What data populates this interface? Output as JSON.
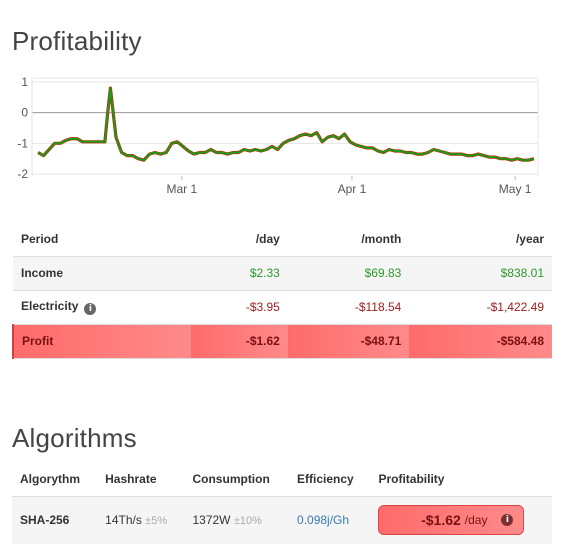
{
  "profitability": {
    "title": "Profitability",
    "table": {
      "headers": [
        "Period",
        "/day",
        "/month",
        "/year"
      ],
      "rows": [
        {
          "label": "Income",
          "day": "$2.33",
          "month": "$69.83",
          "year": "$838.01"
        },
        {
          "label": "Electricity",
          "day": "-$3.95",
          "month": "-$118.54",
          "year": "-$1,422.49"
        },
        {
          "label": "Profit",
          "day": "-$1.62",
          "month": "-$48.71",
          "year": "-$584.48"
        }
      ]
    }
  },
  "chart_data": {
    "type": "line",
    "ylim": [
      -2,
      1
    ],
    "yticks": [
      "1",
      "0",
      "-1",
      "-2"
    ],
    "xticks": [
      "Mar 1",
      "Apr 1",
      "May 1"
    ],
    "series": [
      {
        "color": "#1a9a1a",
        "outline_color": "#cc2200",
        "x": [
          0,
          2,
          4,
          6,
          8,
          10,
          12,
          14,
          16,
          18,
          20,
          22,
          24,
          25,
          26,
          27,
          28,
          30,
          32,
          34,
          36,
          38,
          40,
          42,
          44,
          46,
          48,
          50,
          52,
          54,
          56,
          58,
          60,
          62,
          64,
          66,
          68,
          70,
          72,
          74,
          76,
          78,
          80,
          82,
          84,
          86,
          88,
          90,
          92,
          94,
          96,
          98,
          100,
          102,
          104,
          106,
          108,
          110,
          112,
          114,
          116,
          118,
          120,
          122,
          124,
          126,
          128,
          130,
          132,
          134,
          136,
          138,
          140,
          142,
          144,
          146,
          148,
          150,
          152,
          154,
          156,
          158,
          160,
          162,
          164,
          166,
          168,
          170,
          172,
          174,
          176,
          178
        ],
        "y": [
          -1.3,
          -1.4,
          -1.2,
          -1.0,
          -1.0,
          -0.9,
          -0.85,
          -0.85,
          -0.95,
          -0.95,
          -0.95,
          -0.95,
          -0.95,
          0.0,
          0.8,
          0.0,
          -0.8,
          -1.3,
          -1.4,
          -1.4,
          -1.5,
          -1.55,
          -1.35,
          -1.3,
          -1.35,
          -1.3,
          -1.0,
          -0.95,
          -1.1,
          -1.25,
          -1.35,
          -1.3,
          -1.3,
          -1.2,
          -1.3,
          -1.3,
          -1.35,
          -1.3,
          -1.3,
          -1.2,
          -1.25,
          -1.2,
          -1.25,
          -1.2,
          -1.1,
          -1.2,
          -1.0,
          -0.9,
          -0.85,
          -0.75,
          -0.7,
          -0.75,
          -0.65,
          -0.95,
          -0.8,
          -0.75,
          -0.85,
          -0.7,
          -0.95,
          -1.05,
          -1.1,
          -1.15,
          -1.15,
          -1.25,
          -1.3,
          -1.2,
          -1.25,
          -1.25,
          -1.3,
          -1.3,
          -1.35,
          -1.35,
          -1.3,
          -1.2,
          -1.25,
          -1.3,
          -1.35,
          -1.35,
          -1.35,
          -1.4,
          -1.4,
          -1.35,
          -1.4,
          -1.45,
          -1.45,
          -1.5,
          -1.5,
          -1.55,
          -1.5,
          -1.55,
          -1.55,
          -1.5
        ]
      }
    ]
  },
  "algorithms": {
    "title": "Algorithms",
    "headers": [
      "Algorythm",
      "Hashrate",
      "Consumption",
      "Efficiency",
      "Profitability"
    ],
    "row": {
      "name": "SHA-256",
      "hashrate": "14Th/s",
      "hashrate_tol": "±5%",
      "consumption": "1372W",
      "consumption_tol": "±10%",
      "efficiency": "0.098j/Gh",
      "profit_value": "-$1.62",
      "profit_unit": "/day"
    }
  },
  "colors": {
    "positive": "#2a9a2a",
    "negative": "#a02020",
    "profit_bg": "#ff7a7a"
  },
  "icons": {
    "info": "info-icon"
  }
}
